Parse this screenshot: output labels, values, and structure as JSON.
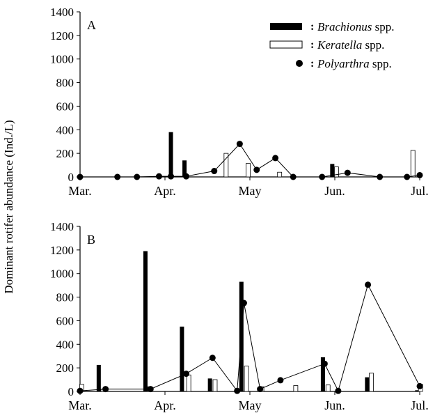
{
  "y_axis_label": "Dominant rotifer abundance (Ind./L)",
  "legend": [
    {
      "series": "Brachionus",
      "genus": "Brachionus",
      "suffix": " spp.",
      "marker": "black-bar"
    },
    {
      "series": "Keratella",
      "genus": "Keratella",
      "suffix": " spp.",
      "marker": "white-bar"
    },
    {
      "series": "Polyarthra",
      "genus": "Polyarthra",
      "suffix": " spp.",
      "marker": "black-dot-line"
    }
  ],
  "legend_separator": ":",
  "colors": {
    "brachionus": "#000000",
    "keratella": "#ffffff",
    "polyarthra": "#000000",
    "axis": "#000000"
  },
  "chart_data": [
    {
      "panel": "A",
      "type": "bar+line",
      "xlim": [
        0,
        4
      ],
      "ylim": [
        0,
        1400
      ],
      "yticks": [
        0,
        200,
        400,
        600,
        800,
        1000,
        1200,
        1400
      ],
      "xticks": [
        {
          "x": 0,
          "label": "Mar."
        },
        {
          "x": 1,
          "label": "Apr."
        },
        {
          "x": 2,
          "label": "May"
        },
        {
          "x": 3,
          "label": "Jun."
        },
        {
          "x": 4,
          "label": "Jul."
        }
      ],
      "grid": false,
      "legend_position": "top-right",
      "series": [
        {
          "name": "Brachionus spp.",
          "kind": "bar",
          "points": [
            [
              1.07,
              380
            ],
            [
              1.23,
              140
            ],
            [
              2.97,
              110
            ]
          ]
        },
        {
          "name": "Keratella spp.",
          "kind": "bar",
          "points": [
            [
              1.72,
              200
            ],
            [
              1.98,
              115
            ],
            [
              2.35,
              40
            ],
            [
              3.02,
              85
            ],
            [
              3.92,
              225
            ]
          ]
        },
        {
          "name": "Polyarthra spp.",
          "kind": "line+marker",
          "points": [
            [
              0.0,
              0
            ],
            [
              0.44,
              0
            ],
            [
              0.67,
              0
            ],
            [
              0.93,
              5
            ],
            [
              1.07,
              5
            ],
            [
              1.25,
              5
            ],
            [
              1.58,
              50
            ],
            [
              1.88,
              280
            ],
            [
              2.08,
              60
            ],
            [
              2.3,
              160
            ],
            [
              2.51,
              0
            ],
            [
              2.85,
              0
            ],
            [
              3.15,
              35
            ],
            [
              3.53,
              0
            ],
            [
              3.85,
              0
            ],
            [
              4.0,
              15
            ]
          ]
        }
      ]
    },
    {
      "panel": "B",
      "type": "bar+line",
      "xlim": [
        0,
        4
      ],
      "ylim": [
        0,
        1400
      ],
      "yticks": [
        0,
        200,
        400,
        600,
        800,
        1000,
        1200,
        1400
      ],
      "xticks": [
        {
          "x": 0,
          "label": "Mar."
        },
        {
          "x": 1,
          "label": "Apr."
        },
        {
          "x": 2,
          "label": "May"
        },
        {
          "x": 3,
          "label": "Jun."
        },
        {
          "x": 4,
          "label": "Jul."
        }
      ],
      "grid": false,
      "series": [
        {
          "name": "Brachionus spp.",
          "kind": "bar",
          "points": [
            [
              0.22,
              225
            ],
            [
              0.77,
              1190
            ],
            [
              1.2,
              550
            ],
            [
              1.53,
              110
            ],
            [
              1.9,
              930
            ],
            [
              2.86,
              290
            ],
            [
              3.38,
              120
            ],
            [
              3.97,
              10
            ]
          ]
        },
        {
          "name": "Keratella spp.",
          "kind": "bar",
          "points": [
            [
              0.02,
              60
            ],
            [
              0.27,
              20
            ],
            [
              0.82,
              40
            ],
            [
              1.28,
              140
            ],
            [
              1.59,
              100
            ],
            [
              1.96,
              215
            ],
            [
              2.14,
              40
            ],
            [
              2.54,
              50
            ],
            [
              2.92,
              55
            ],
            [
              3.43,
              155
            ],
            [
              4.01,
              60
            ]
          ]
        },
        {
          "name": "Polyarthra spp.",
          "kind": "line+marker",
          "points": [
            [
              0.0,
              5
            ],
            [
              0.3,
              20
            ],
            [
              0.83,
              20
            ],
            [
              1.25,
              150
            ],
            [
              1.56,
              285
            ],
            [
              1.85,
              5
            ],
            [
              1.93,
              750
            ],
            [
              2.12,
              20
            ],
            [
              2.36,
              95
            ],
            [
              2.88,
              235
            ],
            [
              3.04,
              5
            ],
            [
              3.39,
              905
            ],
            [
              4.0,
              45
            ]
          ]
        }
      ]
    }
  ]
}
